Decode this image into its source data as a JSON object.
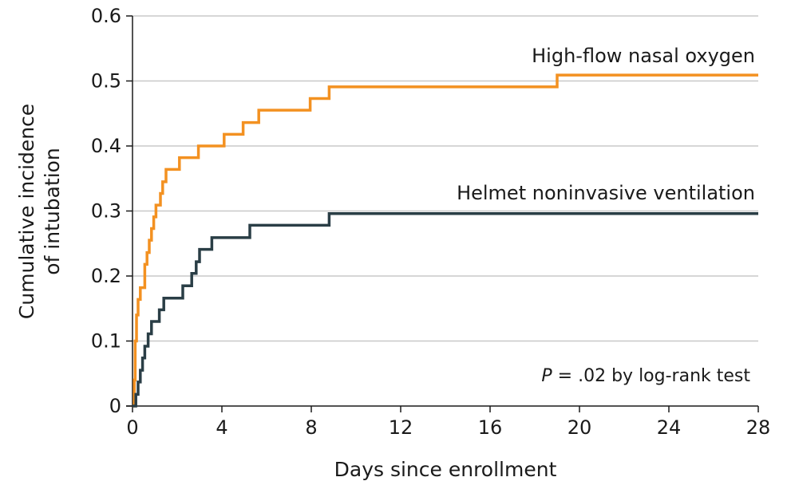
{
  "chart_data": {
    "type": "line",
    "step": true,
    "xlabel": "Days since enrollment",
    "ylabel": [
      "Cumulative incidence",
      "of intubation"
    ],
    "xlim": [
      0,
      28
    ],
    "ylim": [
      0,
      0.6
    ],
    "xticks": [
      0,
      4,
      8,
      12,
      16,
      20,
      24,
      28
    ],
    "xtick_labels": [
      "0",
      "4",
      "8",
      "12",
      "16",
      "20",
      "24",
      "28"
    ],
    "yticks": [
      0,
      0.1,
      0.2,
      0.3,
      0.4,
      0.5,
      0.6
    ],
    "ytick_labels": [
      "0",
      "0.1",
      "0.2",
      "0.3",
      "0.4",
      "0.5",
      "0.6"
    ],
    "grid": "horizontal",
    "annotation": {
      "italic": "P",
      "rest": " = .02 by log-rank test"
    },
    "series": [
      {
        "name": "High-flow nasal oxygen",
        "color": "#f39121",
        "points": [
          [
            0,
            0
          ],
          [
            0.08,
            0.04
          ],
          [
            0.12,
            0.1
          ],
          [
            0.18,
            0.14
          ],
          [
            0.25,
            0.164
          ],
          [
            0.35,
            0.182
          ],
          [
            0.55,
            0.218
          ],
          [
            0.65,
            0.236
          ],
          [
            0.75,
            0.255
          ],
          [
            0.85,
            0.273
          ],
          [
            0.95,
            0.291
          ],
          [
            1.05,
            0.309
          ],
          [
            1.25,
            0.327
          ],
          [
            1.35,
            0.345
          ],
          [
            1.5,
            0.364
          ],
          [
            2.1,
            0.382
          ],
          [
            2.95,
            0.4
          ],
          [
            4.1,
            0.418
          ],
          [
            4.95,
            0.436
          ],
          [
            5.65,
            0.455
          ],
          [
            7.95,
            0.473
          ],
          [
            8.8,
            0.491
          ],
          [
            19.0,
            0.509
          ],
          [
            28,
            0.509
          ]
        ]
      },
      {
        "name": "Helmet noninvasive ventilation",
        "color": "#2a3e46",
        "points": [
          [
            0,
            0
          ],
          [
            0.15,
            0.018
          ],
          [
            0.25,
            0.037
          ],
          [
            0.35,
            0.055
          ],
          [
            0.45,
            0.074
          ],
          [
            0.55,
            0.092
          ],
          [
            0.7,
            0.111
          ],
          [
            0.85,
            0.13
          ],
          [
            1.2,
            0.148
          ],
          [
            1.4,
            0.166
          ],
          [
            2.25,
            0.185
          ],
          [
            2.65,
            0.204
          ],
          [
            2.85,
            0.222
          ],
          [
            3.0,
            0.241
          ],
          [
            3.55,
            0.259
          ],
          [
            5.25,
            0.278
          ],
          [
            8.8,
            0.296
          ],
          [
            28,
            0.296
          ]
        ]
      }
    ]
  }
}
